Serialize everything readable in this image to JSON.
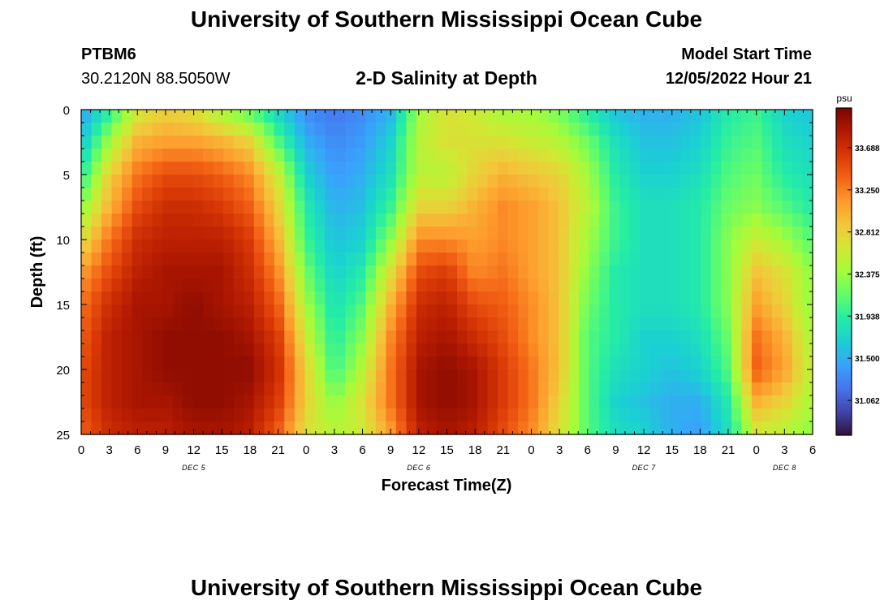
{
  "header": {
    "title": "University of Southern Mississippi Ocean Cube",
    "station_id": "PTBM6",
    "coordinates": "30.2120N  88.5050W",
    "subtitle": "2-D Salinity at Depth",
    "start_label": "Model Start Time",
    "start_value": "12/05/2022 Hour 21"
  },
  "footer": {
    "title": "University of Southern Mississippi Ocean Cube"
  },
  "chart_data": {
    "type": "heatmap",
    "title": "2-D Salinity at Depth",
    "xlabel": "Forecast Time(Z)",
    "ylabel": "Depth (ft)",
    "x_tick_labels": [
      "0",
      "3",
      "6",
      "9",
      "12",
      "15",
      "18",
      "21",
      "0",
      "3",
      "6",
      "9",
      "12",
      "15",
      "18",
      "21",
      "0",
      "3",
      "6",
      "9",
      "12",
      "15",
      "18",
      "21",
      "0",
      "3",
      "6"
    ],
    "date_labels": [
      {
        "label": "DEC 5",
        "hour": 12
      },
      {
        "label": "DEC 6",
        "hour": 36
      },
      {
        "label": "DEC 7",
        "hour": 60
      },
      {
        "label": "DEC 8",
        "hour": 75
      }
    ],
    "xlim_hours": [
      0,
      78
    ],
    "y_ticks": [
      0,
      5,
      10,
      15,
      20,
      25
    ],
    "ylim": [
      0,
      25
    ],
    "y_inverted": true,
    "colorbar": {
      "unit": "psu",
      "ticks": [
        33.688,
        33.25,
        32.812,
        32.375,
        31.938,
        31.5,
        31.062
      ],
      "range": [
        30.7,
        34.1
      ],
      "colors": [
        "#30123b",
        "#4145ab",
        "#4675ed",
        "#39a2fc",
        "#1bcfd4",
        "#24eca6",
        "#61fc6c",
        "#a4fc3b",
        "#d1e834",
        "#f3c63a",
        "#fe9b2d",
        "#f36315",
        "#d93806",
        "#b11901",
        "#7a0402"
      ]
    },
    "series_description": "Salinity (psu) over forecast hours vs depth",
    "columns_hours": [
      0,
      3,
      6,
      9,
      12,
      15,
      18,
      21,
      24,
      27,
      30,
      33,
      36,
      39,
      42,
      45,
      48,
      51,
      54,
      57,
      60,
      63,
      66,
      69,
      72,
      75,
      78
    ],
    "depth_rows": [
      0,
      2.5,
      5,
      7.5,
      10,
      12.5,
      15,
      17.5,
      20,
      22.5,
      25
    ],
    "values": [
      [
        31.4,
        31.9,
        32.6,
        32.8,
        32.7,
        32.4,
        32.1,
        31.7,
        31.3,
        31.2,
        31.3,
        31.5,
        32.4,
        32.7,
        32.6,
        32.4,
        32.4,
        32.2,
        31.9,
        31.6,
        31.5,
        31.5,
        31.6,
        31.9,
        32.0,
        31.7,
        31.6
      ],
      [
        31.6,
        32.4,
        33.0,
        33.1,
        33.1,
        33.0,
        32.8,
        32.1,
        31.5,
        31.3,
        31.4,
        31.7,
        32.5,
        32.7,
        32.7,
        32.7,
        32.6,
        32.5,
        32.2,
        31.8,
        31.6,
        31.6,
        31.7,
        32.0,
        32.1,
        31.8,
        31.7
      ],
      [
        31.9,
        32.8,
        33.3,
        33.5,
        33.5,
        33.4,
        33.2,
        32.6,
        31.7,
        31.4,
        31.5,
        31.8,
        32.5,
        32.5,
        32.8,
        33.0,
        32.9,
        32.8,
        32.4,
        31.9,
        31.7,
        31.7,
        31.8,
        32.1,
        32.2,
        31.9,
        31.8
      ],
      [
        32.3,
        33.0,
        33.5,
        33.7,
        33.7,
        33.6,
        33.4,
        32.8,
        31.9,
        31.5,
        31.6,
        32.0,
        32.8,
        32.8,
        33.0,
        33.2,
        33.1,
        32.9,
        32.5,
        32.0,
        31.8,
        31.8,
        31.9,
        32.2,
        32.3,
        32.1,
        31.9
      ],
      [
        32.7,
        33.3,
        33.7,
        33.8,
        33.8,
        33.8,
        33.6,
        33.0,
        32.0,
        31.6,
        31.7,
        32.3,
        33.2,
        33.2,
        33.1,
        33.2,
        33.1,
        32.9,
        32.4,
        32.0,
        31.8,
        31.8,
        31.9,
        32.3,
        32.6,
        32.4,
        32.1
      ],
      [
        33.1,
        33.5,
        33.8,
        33.9,
        33.9,
        33.9,
        33.7,
        33.2,
        32.2,
        31.7,
        31.9,
        32.7,
        33.5,
        33.6,
        33.2,
        33.3,
        33.1,
        32.9,
        32.3,
        31.9,
        31.8,
        31.8,
        31.9,
        32.3,
        32.9,
        32.7,
        32.3
      ],
      [
        33.3,
        33.7,
        33.9,
        33.9,
        34.0,
        33.9,
        33.8,
        33.4,
        32.4,
        31.8,
        32.1,
        33.0,
        33.7,
        33.8,
        33.5,
        33.4,
        33.2,
        32.9,
        32.2,
        31.9,
        31.8,
        31.8,
        31.9,
        32.3,
        33.1,
        32.8,
        32.3
      ],
      [
        33.4,
        33.8,
        33.9,
        34.0,
        34.0,
        34.0,
        33.9,
        33.6,
        32.6,
        31.9,
        32.3,
        33.2,
        33.8,
        33.9,
        33.7,
        33.5,
        33.2,
        32.9,
        32.1,
        31.9,
        31.7,
        31.7,
        31.8,
        32.2,
        33.3,
        33.0,
        32.4
      ],
      [
        33.5,
        33.8,
        33.9,
        34.0,
        34.0,
        34.0,
        34.0,
        33.7,
        32.8,
        32.0,
        32.5,
        33.3,
        33.9,
        34.0,
        33.9,
        33.6,
        33.3,
        32.9,
        32.1,
        31.8,
        31.7,
        31.6,
        31.7,
        32.1,
        33.4,
        33.1,
        32.5
      ],
      [
        33.5,
        33.8,
        33.9,
        33.9,
        34.0,
        34.0,
        33.9,
        33.6,
        32.8,
        32.3,
        32.7,
        33.3,
        33.9,
        34.0,
        33.9,
        33.6,
        33.3,
        32.8,
        32.1,
        31.7,
        31.6,
        31.5,
        31.5,
        31.9,
        33.0,
        32.8,
        32.4
      ],
      [
        33.4,
        33.7,
        33.8,
        33.8,
        33.9,
        33.9,
        33.8,
        33.4,
        32.7,
        32.5,
        32.6,
        33.1,
        33.8,
        33.9,
        33.8,
        33.5,
        33.2,
        32.7,
        32.1,
        31.8,
        31.7,
        31.5,
        31.4,
        31.8,
        32.6,
        32.5,
        32.3
      ]
    ]
  }
}
